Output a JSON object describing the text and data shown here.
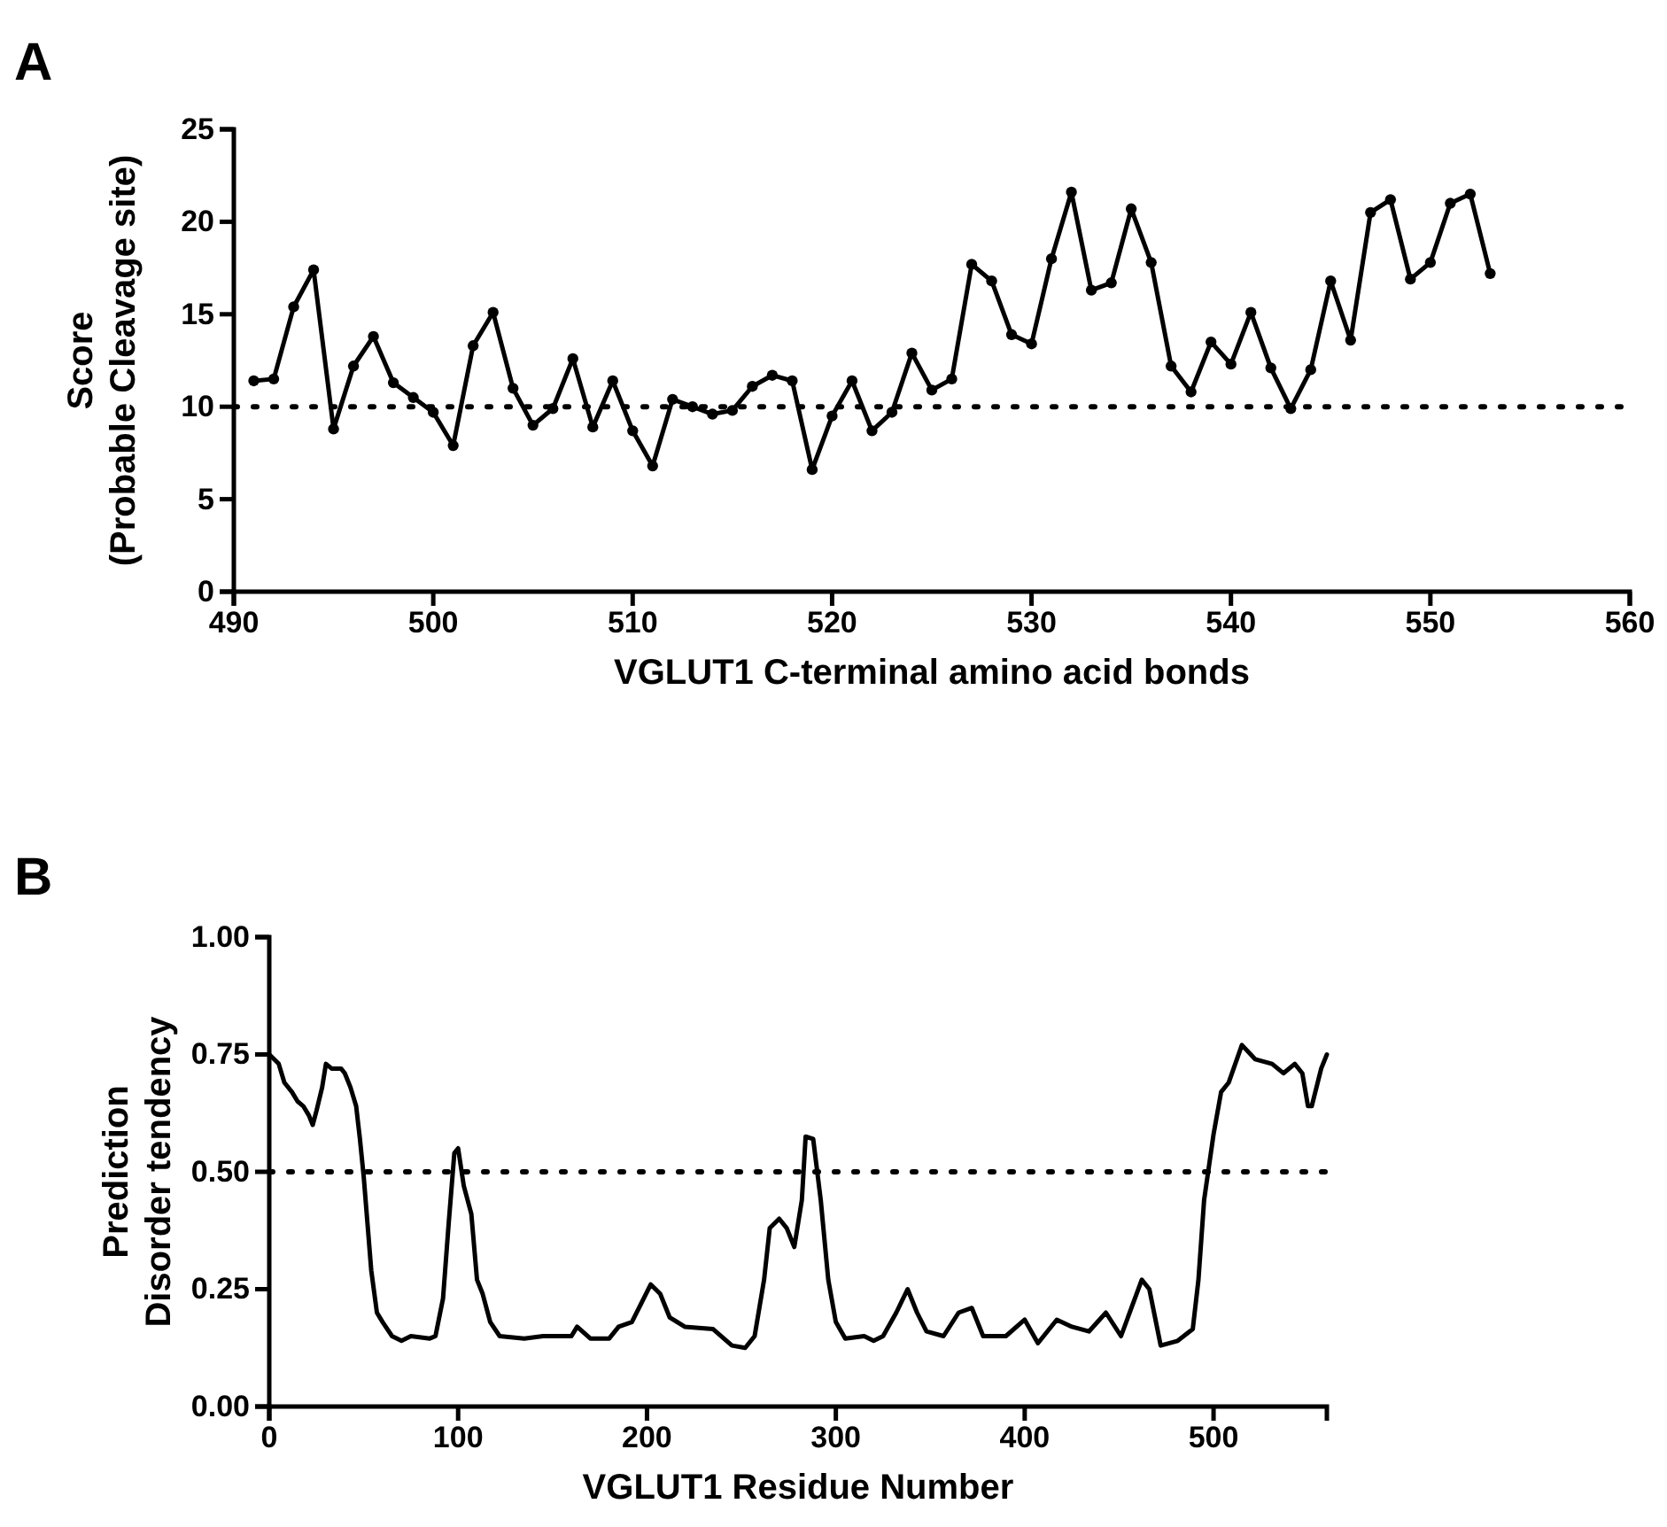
{
  "chart_data": [
    {
      "type": "line",
      "title": "A",
      "xlabel": "VGLUT1 C-terminal amino acid bonds",
      "ylabel": "Score\n(Probable Cleavage site)",
      "marker": "circle",
      "line_style": "solid",
      "grid": false,
      "x": [
        491,
        492,
        493,
        494,
        495,
        496,
        497,
        498,
        499,
        500,
        501,
        502,
        503,
        504,
        505,
        506,
        507,
        508,
        509,
        510,
        511,
        512,
        513,
        514,
        515,
        516,
        517,
        518,
        519,
        520,
        521,
        522,
        523,
        524,
        525,
        526,
        527,
        528,
        529,
        530,
        531,
        532,
        533,
        534,
        535,
        536,
        537,
        538,
        539,
        540,
        541,
        542,
        543,
        544,
        545,
        546,
        547,
        548,
        549,
        550,
        551,
        552,
        553
      ],
      "series": [
        {
          "color": "#000000",
          "values": [
            11.4,
            11.5,
            15.4,
            17.4,
            8.8,
            12.2,
            13.8,
            11.3,
            10.5,
            9.7,
            7.9,
            13.3,
            15.1,
            11.0,
            9.0,
            9.9,
            12.6,
            8.9,
            11.4,
            8.7,
            6.8,
            10.4,
            10.0,
            9.6,
            9.8,
            11.1,
            11.7,
            11.4,
            6.6,
            9.5,
            11.4,
            8.7,
            9.7,
            12.9,
            10.9,
            11.5,
            17.7,
            16.8,
            13.9,
            13.4,
            18.0,
            21.6,
            16.3,
            16.7,
            20.7,
            17.8,
            12.2,
            10.8,
            13.5,
            12.3,
            15.1,
            12.1,
            9.9,
            12.0,
            16.8,
            13.6,
            20.5,
            21.2,
            16.9,
            17.8,
            21.0,
            21.5,
            17.2
          ]
        }
      ],
      "xlim": [
        490,
        560
      ],
      "xticks": [
        490,
        500,
        510,
        520,
        530,
        540,
        550,
        560
      ],
      "ylim": [
        0,
        25
      ],
      "yticks": [
        0,
        5,
        10,
        15,
        20,
        25
      ],
      "ref_lines": [
        {
          "axis": "y",
          "value": 10,
          "line_style": "dotted",
          "color": "#000000"
        }
      ]
    },
    {
      "type": "line",
      "title": "B",
      "xlabel": "VGLUT1  Residue Number",
      "ylabel": "Prediction\nDisorder tendency",
      "marker": "none",
      "line_style": "solid",
      "grid": false,
      "x": [
        0,
        5,
        8,
        12,
        15,
        18,
        21,
        23,
        25,
        28,
        30,
        33,
        38,
        40,
        43,
        46,
        48,
        50,
        52,
        54,
        57,
        60,
        65,
        70,
        75,
        85,
        88,
        92,
        95,
        98,
        100,
        103,
        107,
        110,
        113,
        117,
        122,
        135,
        145,
        160,
        163,
        170,
        180,
        185,
        192,
        197,
        202,
        207,
        212,
        220,
        235,
        245,
        252,
        257,
        262,
        265,
        270,
        274,
        278,
        282,
        284,
        288,
        292,
        296,
        300,
        305,
        315,
        320,
        325,
        332,
        338,
        343,
        348,
        357,
        365,
        372,
        378,
        390,
        400,
        407,
        417,
        425,
        434,
        443,
        451,
        462,
        466,
        472,
        481,
        489,
        492,
        495,
        500,
        504,
        508,
        515,
        522,
        531,
        537,
        543,
        547,
        550,
        552,
        557,
        560
      ],
      "series": [
        {
          "color": "#000000",
          "values": [
            0.75,
            0.73,
            0.69,
            0.67,
            0.65,
            0.64,
            0.62,
            0.6,
            0.63,
            0.68,
            0.73,
            0.72,
            0.72,
            0.71,
            0.68,
            0.64,
            0.57,
            0.49,
            0.39,
            0.29,
            0.2,
            0.18,
            0.15,
            0.14,
            0.15,
            0.145,
            0.15,
            0.23,
            0.39,
            0.54,
            0.55,
            0.47,
            0.41,
            0.27,
            0.24,
            0.18,
            0.15,
            0.145,
            0.15,
            0.15,
            0.17,
            0.145,
            0.145,
            0.17,
            0.18,
            0.22,
            0.26,
            0.24,
            0.19,
            0.17,
            0.165,
            0.13,
            0.125,
            0.15,
            0.27,
            0.38,
            0.4,
            0.38,
            0.34,
            0.44,
            0.575,
            0.57,
            0.44,
            0.27,
            0.18,
            0.145,
            0.15,
            0.14,
            0.15,
            0.2,
            0.25,
            0.2,
            0.16,
            0.15,
            0.2,
            0.21,
            0.15,
            0.15,
            0.185,
            0.135,
            0.185,
            0.17,
            0.16,
            0.2,
            0.15,
            0.27,
            0.25,
            0.13,
            0.14,
            0.165,
            0.27,
            0.44,
            0.58,
            0.67,
            0.69,
            0.77,
            0.74,
            0.73,
            0.71,
            0.73,
            0.71,
            0.64,
            0.64,
            0.72,
            0.75
          ]
        }
      ],
      "xlim": [
        0,
        560
      ],
      "xticks": [
        0,
        100,
        200,
        300,
        400,
        500
      ],
      "ylim": [
        0,
        1
      ],
      "yticks": [
        {
          "value": 0,
          "label": "0.00"
        },
        {
          "value": 0.25,
          "label": "0.25"
        },
        {
          "value": 0.5,
          "label": "0.50"
        },
        {
          "value": 0.75,
          "label": "0.75"
        },
        {
          "value": 1,
          "label": "1.00"
        }
      ],
      "ref_lines": [
        {
          "axis": "y",
          "value": 0.5,
          "line_style": "dotted",
          "color": "#000000"
        }
      ]
    }
  ]
}
